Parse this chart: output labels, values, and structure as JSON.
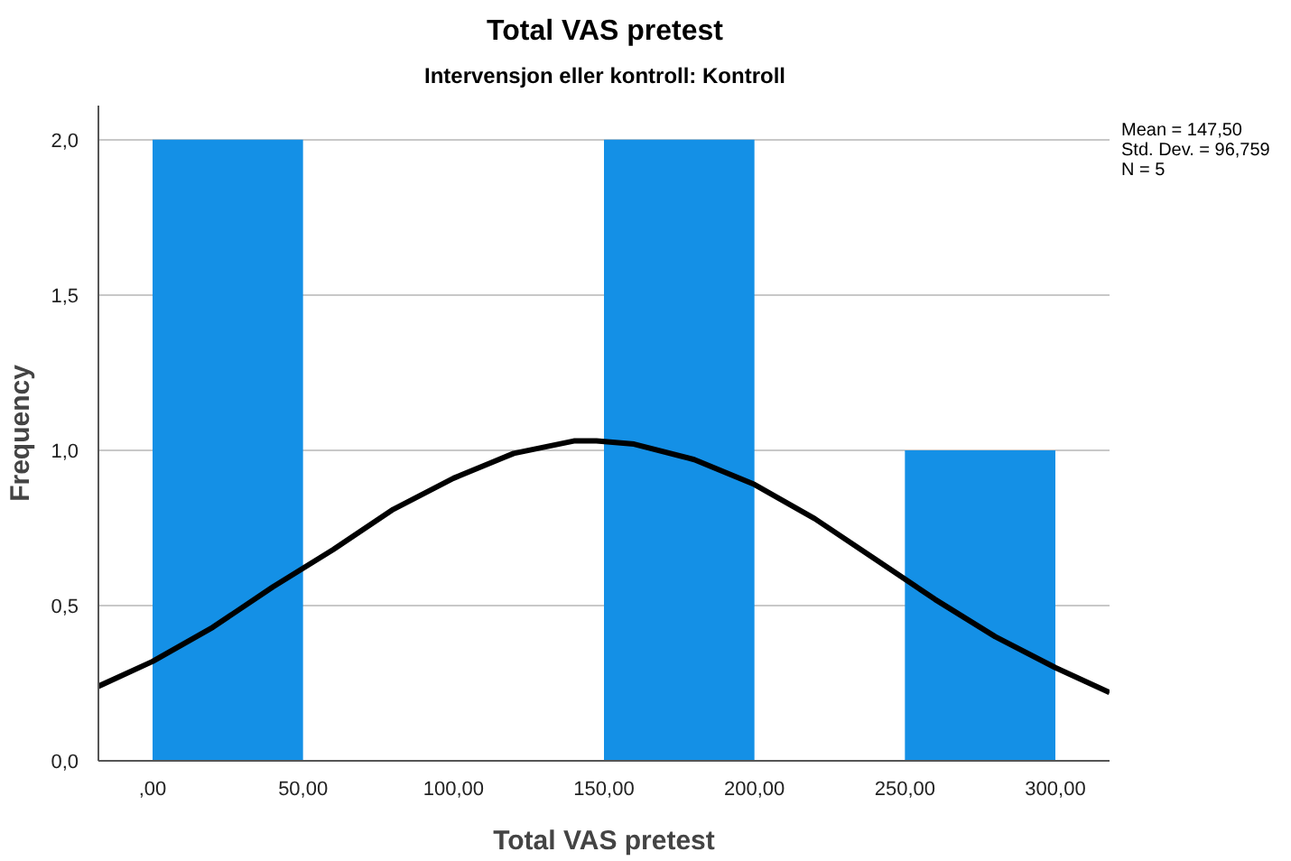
{
  "chart_data": {
    "type": "histogram",
    "title": "Total VAS pretest",
    "subtitle": "Intervensjon eller kontroll: Kontroll",
    "xlabel": "Total VAS pretest",
    "ylabel": "Frequency",
    "bins": [
      0,
      50,
      100,
      150,
      200,
      250,
      300
    ],
    "values": [
      2,
      0,
      0,
      2,
      0,
      1
    ],
    "color": "#1490e6",
    "series": [
      {
        "type": "line",
        "color": "#000000",
        "x": [
          -18,
          0,
          20,
          40,
          60,
          80,
          100,
          120,
          140,
          147.5,
          160,
          180,
          200,
          220,
          240,
          260,
          280,
          300,
          318
        ],
        "values": [
          0.24,
          0.32,
          0.43,
          0.56,
          0.68,
          0.81,
          0.91,
          0.99,
          1.03,
          1.03,
          1.02,
          0.97,
          0.89,
          0.78,
          0.65,
          0.52,
          0.4,
          0.3,
          0.22
        ]
      }
    ],
    "xlim": [
      -18,
      318
    ],
    "xticks": [
      {
        "value": 0,
        "label": ",00"
      },
      {
        "value": 50,
        "label": "50,00"
      },
      {
        "value": 100,
        "label": "100,00"
      },
      {
        "value": 150,
        "label": "150,00"
      },
      {
        "value": 200,
        "label": "200,00"
      },
      {
        "value": 250,
        "label": "250,00"
      },
      {
        "value": 300,
        "label": "300,00"
      }
    ],
    "ylim": [
      0,
      2.11
    ],
    "yticks": [
      {
        "value": 0,
        "label": "0,0"
      },
      {
        "value": 0.5,
        "label": "0,5"
      },
      {
        "value": 1,
        "label": "1,0"
      },
      {
        "value": 1.5,
        "label": "1,5"
      },
      {
        "value": 2,
        "label": "2,0"
      }
    ],
    "grid": "y",
    "annotations": [
      "Mean = 147,50",
      "Std. Dev. = 96,759",
      "N = 5"
    ]
  }
}
